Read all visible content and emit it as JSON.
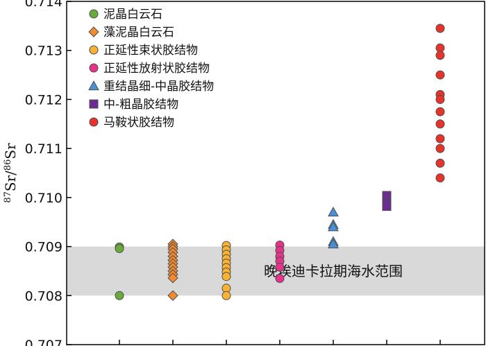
{
  "chart_data": {
    "type": "scatter",
    "title": "",
    "xlabel": "",
    "ylabel": {
      "sup1": "87",
      "base1": "Sr/",
      "sup2": "86",
      "base2": "Sr"
    },
    "ylim": [
      0.707,
      0.714
    ],
    "yticks": [
      "0.707",
      "0.708",
      "0.709",
      "0.710",
      "0.711",
      "0.712",
      "0.713",
      "0.714"
    ],
    "grid": false,
    "legend_position": "top-left",
    "band": {
      "label": "晚埃迪卡拉期海水范围",
      "range": [
        0.708,
        0.709
      ],
      "color": "#d9d9d9"
    },
    "series": [
      {
        "name": "泥晶白云石",
        "marker": "circle",
        "color": "#6aaa3a",
        "x": 1,
        "values": [
          0.70899,
          0.70896,
          0.708
        ]
      },
      {
        "name": "藻泥晶白云石",
        "marker": "diamond",
        "color": "#f28a30",
        "x": 2,
        "values": [
          0.70905,
          0.709,
          0.70895,
          0.70888,
          0.7088,
          0.70872,
          0.70865,
          0.70858,
          0.7085,
          0.70843,
          0.70836,
          0.708
        ]
      },
      {
        "name": "正延性束状胶结物",
        "marker": "circle",
        "color": "#f9b233",
        "x": 3,
        "values": [
          0.70902,
          0.70893,
          0.70884,
          0.70875,
          0.70866,
          0.70857,
          0.70848,
          0.70839,
          0.70815,
          0.708
        ]
      },
      {
        "name": "正延性放射状胶结物",
        "marker": "circle",
        "color": "#e6338a",
        "x": 4,
        "values": [
          0.70903,
          0.70892,
          0.7088,
          0.7087,
          0.70858,
          0.70835
        ]
      },
      {
        "name": "重结晶细-中晶胶结物",
        "marker": "triangle",
        "color": "#4a90d9",
        "x": 5,
        "values": [
          0.7097,
          0.70945,
          0.7094,
          0.7091,
          0.70905
        ]
      },
      {
        "name": "中-粗晶胶结物",
        "marker": "square",
        "color": "#6a2c91",
        "x": 6,
        "values": [
          0.71004,
          0.7099,
          0.70982
        ]
      },
      {
        "name": "马鞍状胶结物",
        "marker": "circle",
        "color": "#e8332a",
        "x": 7,
        "values": [
          0.71345,
          0.71305,
          0.7129,
          0.7125,
          0.7121,
          0.712,
          0.71175,
          0.7115,
          0.7112,
          0.711,
          0.7107,
          0.7104
        ]
      }
    ]
  }
}
